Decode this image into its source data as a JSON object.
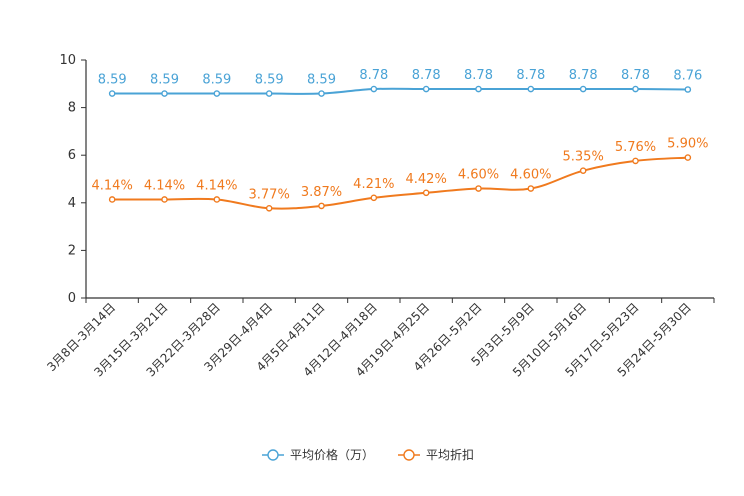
{
  "chart_data": {
    "type": "line",
    "title": "",
    "xlabel": "",
    "ylabel": "",
    "ylim": [
      0,
      10
    ],
    "yticks": [
      0,
      2,
      4,
      6,
      8,
      10
    ],
    "grid": false,
    "legend_position": "bottom-center",
    "categories": [
      "3月8日-3月14日",
      "3月15日-3月21日",
      "3月22日-3月28日",
      "3月29日-4月4日",
      "4月5日-4月11日",
      "4月12日-4月18日",
      "4月19日-4月25日",
      "4月26日-5月2日",
      "5月3日-5月9日",
      "5月10日-5月16日",
      "5月17日-5月23日",
      "5月24日-5月30日"
    ],
    "series": [
      {
        "name": "平均价格（万）",
        "color": "#4aa3d6",
        "values": [
          8.59,
          8.59,
          8.59,
          8.59,
          8.59,
          8.78,
          8.78,
          8.78,
          8.78,
          8.78,
          8.78,
          8.76
        ],
        "labels": [
          "8.59",
          "8.59",
          "8.59",
          "8.59",
          "8.59",
          "8.78",
          "8.78",
          "8.78",
          "8.78",
          "8.78",
          "8.78",
          "8.76"
        ]
      },
      {
        "name": "平均折扣",
        "color": "#f07a1e",
        "values": [
          4.14,
          4.14,
          4.14,
          3.77,
          3.87,
          4.21,
          4.42,
          4.6,
          4.6,
          5.35,
          5.76,
          5.9
        ],
        "labels": [
          "4.14%",
          "4.14%",
          "4.14%",
          "3.77%",
          "3.87%",
          "4.21%",
          "4.42%",
          "4.60%",
          "4.60%",
          "5.35%",
          "5.76%",
          "5.90%"
        ]
      }
    ]
  }
}
